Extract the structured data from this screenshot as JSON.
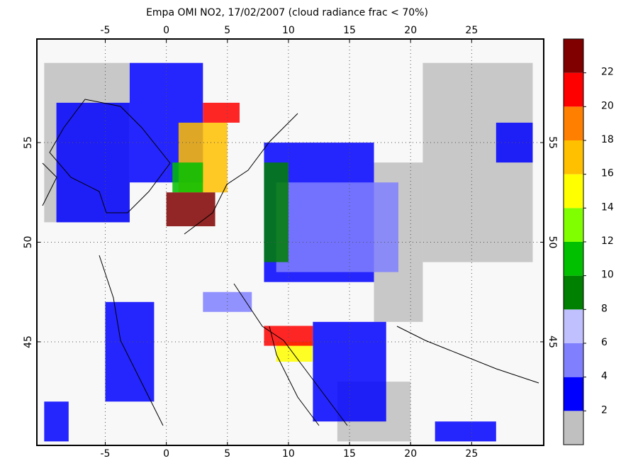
{
  "title": "Empa OMI NO2, 17/02/2007 (cloud radiance frac < 70%)",
  "map": {
    "xlim": [
      -10.6,
      30.9
    ],
    "ylim": [
      39.8,
      60.2
    ],
    "xticks": [
      -5,
      0,
      5,
      10,
      15,
      20,
      25
    ],
    "yticks": [
      45,
      50,
      55
    ],
    "cells": [
      {
        "lon": -10,
        "lat": 51,
        "dlon": 7,
        "dlat": 8,
        "value": 1
      },
      {
        "lon": -9,
        "lat": 51,
        "dlon": 6,
        "dlat": 6,
        "value": 3
      },
      {
        "lon": -3,
        "lat": 53,
        "dlon": 6,
        "dlat": 6,
        "value": 3
      },
      {
        "lon": 21,
        "lat": 49,
        "dlon": 9,
        "dlat": 10,
        "value": 1
      },
      {
        "lon": 17,
        "lat": 46,
        "dlon": 4,
        "dlat": 8,
        "value": 1
      },
      {
        "lon": 14,
        "lat": 40,
        "dlon": 6,
        "dlat": 3,
        "value": 1
      },
      {
        "lon": 8,
        "lat": 48,
        "dlon": 9,
        "dlat": 7,
        "value": 3
      },
      {
        "lon": 9,
        "lat": 48.5,
        "dlon": 10,
        "dlat": 4.5,
        "value": 5
      },
      {
        "lon": 27,
        "lat": 54,
        "dlon": 3,
        "dlat": 2,
        "value": 3
      },
      {
        "lon": 12,
        "lat": 41,
        "dlon": 6,
        "dlat": 5,
        "value": 3
      },
      {
        "lon": -5,
        "lat": 42,
        "dlon": 4,
        "dlat": 5,
        "value": 3
      },
      {
        "lon": -10,
        "lat": 40,
        "dlon": 2,
        "dlat": 2,
        "value": 3
      },
      {
        "lon": 22,
        "lat": 40,
        "dlon": 5,
        "dlat": 1,
        "value": 3
      },
      {
        "lon": 3,
        "lat": 46.5,
        "dlon": 4,
        "dlat": 1,
        "value": 4
      },
      {
        "lon": 8,
        "lat": 49,
        "dlon": 2,
        "dlat": 5,
        "value": 9
      },
      {
        "lon": 1,
        "lat": 52.5,
        "dlon": 4,
        "dlat": 3.5,
        "value": 16
      },
      {
        "lon": 0.5,
        "lat": 52.5,
        "dlon": 2.5,
        "dlat": 1.5,
        "value": 11
      },
      {
        "lon": 3,
        "lat": 56,
        "dlon": 3,
        "dlat": 1,
        "value": 21
      },
      {
        "lon": 0,
        "lat": 50.8,
        "dlon": 4,
        "dlat": 1.7,
        "value": 23
      },
      {
        "lon": 9,
        "lat": 44,
        "dlon": 3,
        "dlat": 1,
        "value": 15
      },
      {
        "lon": 8,
        "lat": 44.8,
        "dlon": 4,
        "dlat": 1,
        "value": 20
      }
    ]
  },
  "colorbar": {
    "lim": [
      0,
      24
    ],
    "ticks": [
      2,
      4,
      6,
      8,
      10,
      12,
      14,
      16,
      18,
      20,
      22
    ],
    "colors": [
      "#c0c0c0",
      "#0000ff",
      "#8080ff",
      "#c0c0ff",
      "#008000",
      "#00c000",
      "#80ff00",
      "#ffff00",
      "#ffc000",
      "#ff8000",
      "#ff0000",
      "#800000"
    ]
  }
}
